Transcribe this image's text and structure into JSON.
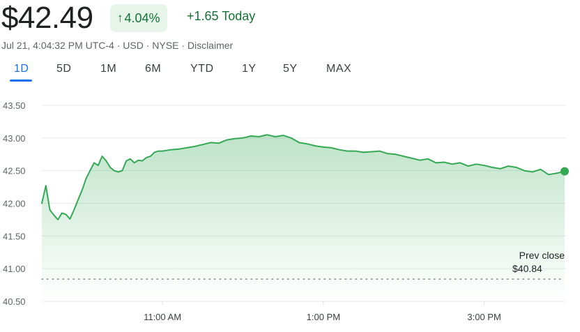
{
  "quote": {
    "price": "$42.49",
    "change_percent": "4.04%",
    "change_arrow_icon": "arrow-up-icon",
    "change_today": "+1.65 Today",
    "meta": "Jul 21, 4:04:32 PM UTC-4 · USD · NYSE · Disclaimer"
  },
  "tabs": [
    {
      "label": "1D",
      "active": true
    },
    {
      "label": "5D",
      "active": false
    },
    {
      "label": "1M",
      "active": false
    },
    {
      "label": "6M",
      "active": false
    },
    {
      "label": "YTD",
      "active": false
    },
    {
      "label": "1Y",
      "active": false
    },
    {
      "label": "5Y",
      "active": false
    },
    {
      "label": "MAX",
      "active": false
    }
  ],
  "colors": {
    "up": "#137333",
    "line": "#34a853",
    "active_tab": "#1a73e8"
  },
  "chart_data": {
    "type": "line",
    "y_ticks": [
      "43.50",
      "43.00",
      "42.50",
      "42.00",
      "41.50",
      "41.00",
      "40.50"
    ],
    "x_ticks": [
      "11:00 AM",
      "1:00 PM",
      "3:00 PM"
    ],
    "ylim": [
      40.5,
      43.5
    ],
    "prev_close_label": "Prev close",
    "prev_close_value_label": "$40.84",
    "prev_close": 40.84,
    "grid": true,
    "series": [
      {
        "x": [
          "09:30",
          "09:33",
          "09:36",
          "09:39",
          "09:42",
          "09:45",
          "09:48",
          "09:51",
          "09:54",
          "09:57",
          "10:00",
          "10:03",
          "10:06",
          "10:09",
          "10:12",
          "10:15",
          "10:18",
          "10:21",
          "10:24",
          "10:27",
          "10:30",
          "10:33",
          "10:36",
          "10:39",
          "10:42",
          "10:45",
          "10:48",
          "10:51",
          "10:54",
          "10:57",
          "11:00",
          "11:06",
          "11:12",
          "11:18",
          "11:24",
          "11:30",
          "11:36",
          "11:42",
          "11:48",
          "11:54",
          "12:00",
          "12:06",
          "12:12",
          "12:18",
          "12:24",
          "12:30",
          "12:36",
          "12:42",
          "12:48",
          "12:54",
          "13:00",
          "13:06",
          "13:12",
          "13:18",
          "13:24",
          "13:30",
          "13:36",
          "13:42",
          "13:48",
          "13:54",
          "14:00",
          "14:06",
          "14:12",
          "14:18",
          "14:24",
          "14:30",
          "14:36",
          "14:42",
          "14:48",
          "14:54",
          "15:00",
          "15:06",
          "15:12",
          "15:18",
          "15:24",
          "15:30",
          "15:36",
          "15:42",
          "15:48",
          "15:54",
          "16:00"
        ],
        "y": [
          42.0,
          42.27,
          41.9,
          41.82,
          41.75,
          41.85,
          41.83,
          41.76,
          41.9,
          42.05,
          42.2,
          42.38,
          42.5,
          42.62,
          42.58,
          42.72,
          42.65,
          42.55,
          42.5,
          42.48,
          42.5,
          42.65,
          42.68,
          42.62,
          42.66,
          42.65,
          42.7,
          42.72,
          42.78,
          42.8,
          42.8,
          42.82,
          42.83,
          42.85,
          42.87,
          42.9,
          42.93,
          42.92,
          42.97,
          42.99,
          43.0,
          43.03,
          43.02,
          43.05,
          43.02,
          43.04,
          43.0,
          42.93,
          42.91,
          42.88,
          42.86,
          42.85,
          42.82,
          42.8,
          42.8,
          42.78,
          42.79,
          42.8,
          42.76,
          42.75,
          42.72,
          42.69,
          42.66,
          42.68,
          42.62,
          42.63,
          42.6,
          42.62,
          42.57,
          42.6,
          42.58,
          42.55,
          42.53,
          42.57,
          42.55,
          42.5,
          42.48,
          42.52,
          42.44,
          42.46,
          42.49
        ]
      }
    ]
  }
}
